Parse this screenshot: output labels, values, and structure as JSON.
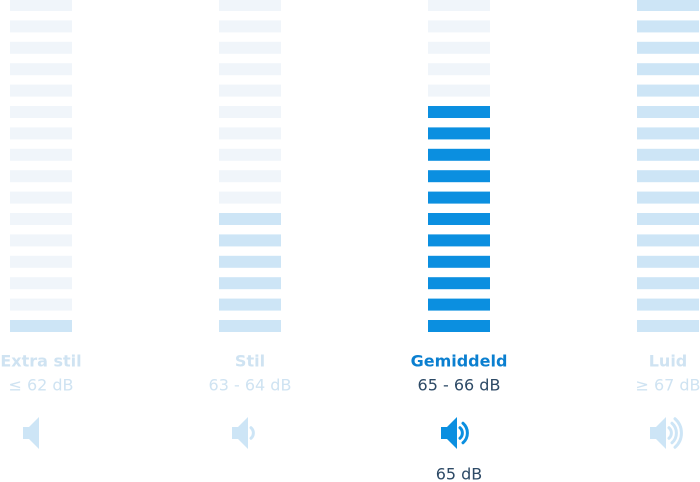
{
  "segments": 16,
  "levels": [
    {
      "label": "Extra stil",
      "range": "≤ 62 dB",
      "filled": 1,
      "selected": false
    },
    {
      "label": "Stil",
      "range": "63 - 64 dB",
      "filled": 6,
      "selected": false
    },
    {
      "label": "Gemiddeld",
      "range": "65 - 66 dB",
      "filled": 11,
      "selected": true
    },
    {
      "label": "Luid",
      "range": "≥ 67 dB",
      "filled": 16,
      "selected": false
    }
  ],
  "reading": "65 dB"
}
